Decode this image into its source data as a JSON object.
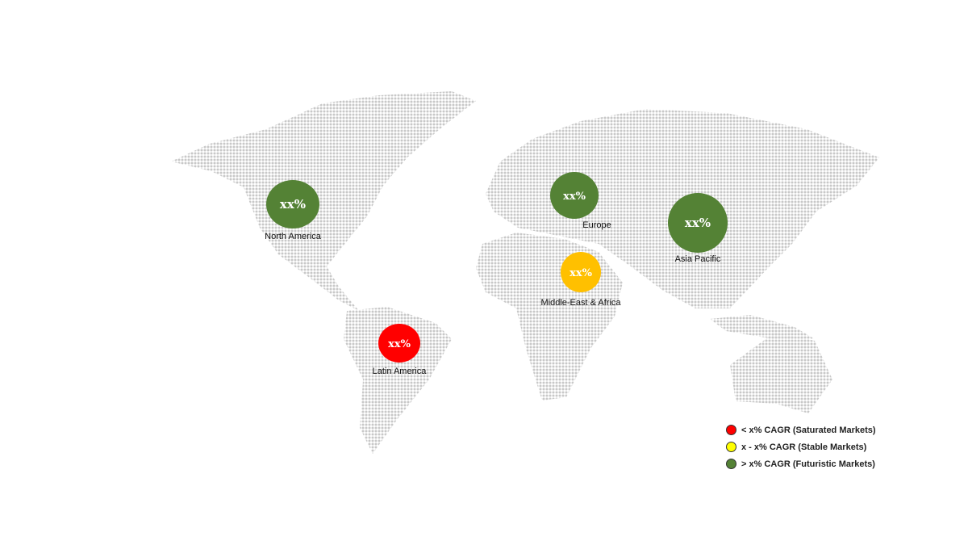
{
  "regions": [
    {
      "name": "North America",
      "value": "xx%",
      "color": "#548235"
    },
    {
      "name": "Europe",
      "value": "xx%",
      "color": "#548235"
    },
    {
      "name": "Asia Pacific",
      "value": "xx%",
      "color": "#548235"
    },
    {
      "name": "Middle-East & Africa",
      "value": "xx%",
      "color": "#FFC000"
    },
    {
      "name": "Latin America",
      "value": "xx%",
      "color": "#FF0000"
    }
  ],
  "legend": [
    {
      "label": "< x% CAGR (Saturated Markets)",
      "color": "#FF0000"
    },
    {
      "label": "x - x% CAGR (Stable Markets)",
      "color": "#FFFF00"
    },
    {
      "label": "> x% CAGR (Futuristic Markets)",
      "color": "#548235"
    }
  ],
  "map_dot_color": "#c8c8c8"
}
